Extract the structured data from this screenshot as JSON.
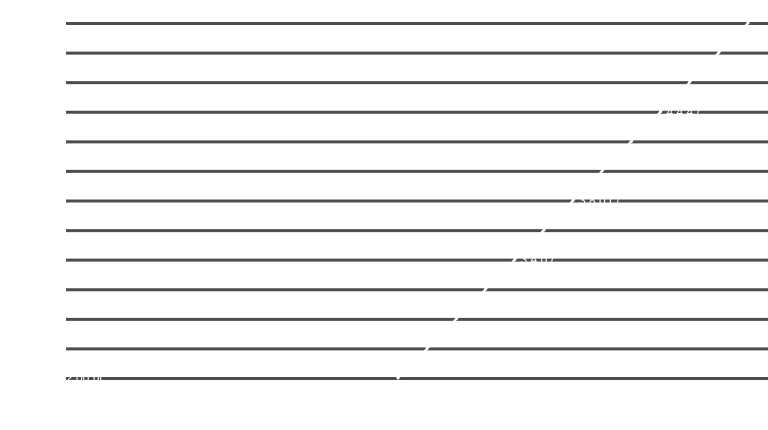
{
  "chart_data": {
    "type": "line",
    "title": "",
    "xlabel": "",
    "ylabel": "",
    "grid": true,
    "legend": "none",
    "ylim": [
      0,
      12
    ],
    "x": [
      0,
      1,
      2,
      3,
      4,
      5,
      6,
      7,
      8,
      9,
      10,
      11,
      12
    ],
    "series": [
      {
        "values": [
          0,
          1,
          2,
          3,
          4,
          5,
          6,
          7,
          8,
          9,
          10,
          11,
          12
        ],
        "color": "#ffffff"
      }
    ],
    "point_labels": [
      {
        "x": 0,
        "text": "2,00 bl"
      },
      {
        "x": 4,
        "text": "3,4,0 /"
      },
      {
        "x": 6,
        "text": "3,8 0 r /"
      },
      {
        "x": 9,
        "text": "4 4 4 /"
      }
    ],
    "colors": {
      "background": "#ffffff",
      "grid": "#4d4d4d",
      "line": "#ffffff"
    }
  }
}
